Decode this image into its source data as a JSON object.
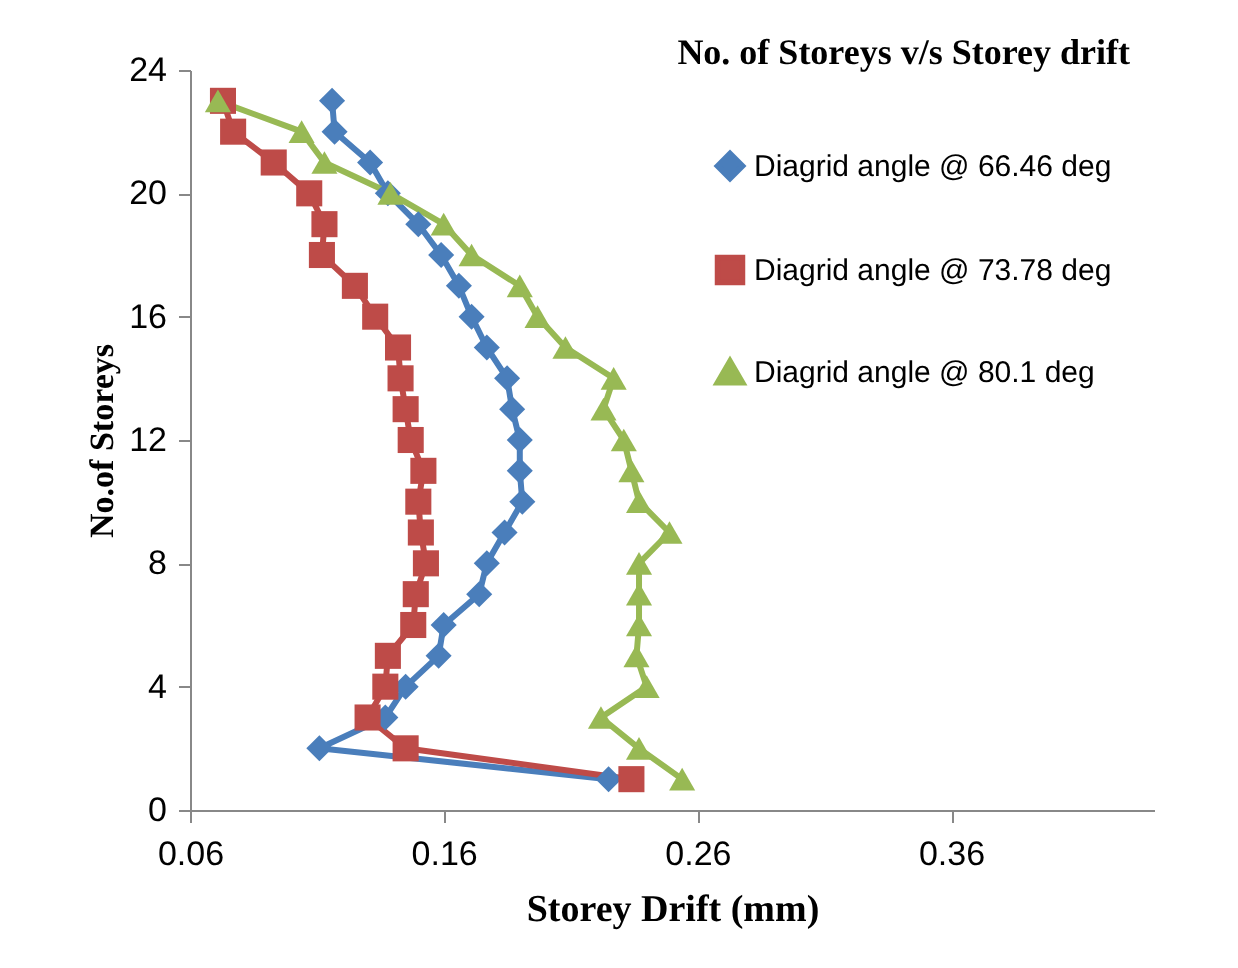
{
  "chart_data": {
    "type": "line",
    "title": "No. of Storeys v/s Storey drift",
    "xlabel": "Storey  Drift (mm)",
    "ylabel": "No.of Storeys",
    "xlim": [
      0.06,
      0.44
    ],
    "xticks": [
      0.06,
      0.16,
      0.26,
      0.36
    ],
    "ylim": [
      0,
      24
    ],
    "yticks": [
      0,
      4,
      8,
      12,
      16,
      20,
      24
    ],
    "grid": false,
    "legend": "right",
    "series": [
      {
        "name": "Diagrid angle @ 66.46 deg",
        "color": "#4a7ebb",
        "marker": "diamond",
        "x": [
          0.225,
          0.111,
          0.137,
          0.145,
          0.158,
          0.16,
          0.174,
          0.177,
          0.184,
          0.191,
          0.19,
          0.19,
          0.187,
          0.185,
          0.177,
          0.171,
          0.166,
          0.159,
          0.15,
          0.138,
          0.131,
          0.117,
          0.116
        ],
        "values": [
          1,
          2,
          3,
          4,
          5,
          6,
          7,
          8,
          9,
          10,
          11,
          12,
          13,
          14,
          15,
          16,
          17,
          18,
          19,
          20,
          21,
          22,
          23
        ]
      },
      {
        "name": "Diagrid angle @ 73.78 deg",
        "color": "#be4b48",
        "marker": "square",
        "x": [
          0.234,
          0.145,
          0.13,
          0.137,
          0.138,
          0.148,
          0.149,
          0.153,
          0.151,
          0.15,
          0.152,
          0.147,
          0.145,
          0.143,
          0.142,
          0.133,
          0.125,
          0.112,
          0.113,
          0.107,
          0.093,
          0.077,
          0.073
        ],
        "values": [
          1,
          2,
          3,
          4,
          5,
          6,
          7,
          8,
          9,
          10,
          11,
          12,
          13,
          14,
          15,
          16,
          17,
          18,
          19,
          20,
          21,
          22,
          23
        ]
      },
      {
        "name": "Diagrid angle @ 80.1 deg",
        "color": "#98b954",
        "marker": "triangle",
        "x": [
          0.254,
          0.237,
          0.222,
          0.24,
          0.236,
          0.237,
          0.237,
          0.237,
          0.249,
          0.237,
          0.234,
          0.231,
          0.223,
          0.227,
          0.208,
          0.197,
          0.19,
          0.171,
          0.16,
          0.139,
          0.113,
          0.104,
          0.071
        ],
        "values": [
          1,
          2,
          3,
          4,
          5,
          6,
          7,
          8,
          9,
          10,
          11,
          12,
          13,
          14,
          15,
          16,
          17,
          18,
          19,
          20,
          21,
          22,
          23
        ]
      }
    ]
  }
}
